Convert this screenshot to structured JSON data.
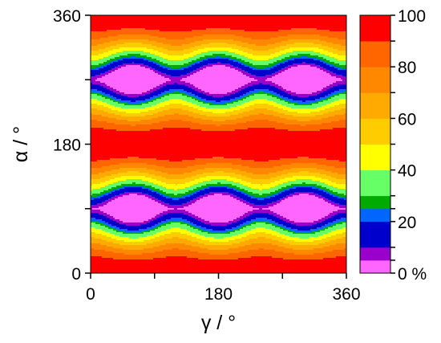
{
  "chart_data": {
    "type": "heatmap",
    "title": "",
    "xlabel": "γ / °",
    "ylabel": "α / °",
    "xlim": [
      0,
      360
    ],
    "ylim": [
      0,
      360
    ],
    "x_ticks": [
      0,
      90,
      180,
      270,
      360
    ],
    "x_tick_labels": [
      "0",
      "",
      "180",
      "",
      "360"
    ],
    "y_ticks": [
      0,
      90,
      180,
      270,
      360
    ],
    "y_tick_labels": [
      "0",
      "",
      "180",
      "",
      "360"
    ],
    "grid": false,
    "colorbar": {
      "placement": "right",
      "unit": "%",
      "range": [
        0,
        100
      ],
      "levels": [
        0,
        5,
        10,
        20,
        25,
        30,
        40,
        50,
        60,
        70,
        80,
        90,
        100
      ],
      "tick_values": [
        0,
        20,
        40,
        60,
        80,
        100
      ],
      "tick_labels": [
        "0 %",
        "20",
        "40",
        "60",
        "80",
        "100"
      ],
      "colors": [
        "#ff66ff",
        "#9900cc",
        "#0000cc",
        "#0066ff",
        "#00aa00",
        "#66ff66",
        "#ffff00",
        "#ffcc00",
        "#ffaa00",
        "#ff8800",
        "#ff6600",
        "#ff0000"
      ]
    },
    "field_description": {
      "min_centers_x": [
        0,
        120,
        240,
        360
      ],
      "min_centers_y": [
        90,
        270
      ],
      "max_bands_y": [
        0,
        180,
        360
      ]
    }
  }
}
